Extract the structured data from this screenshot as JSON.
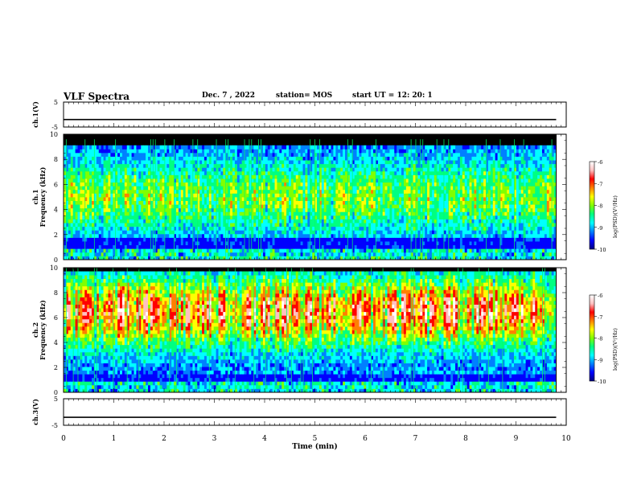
{
  "header": {
    "title": "VLF Spectra",
    "date": "Dec. 7 , 2022",
    "station": "station= MOS",
    "start": "start  UT =   12: 20: 1"
  },
  "colors": {
    "colormap": [
      "#000080",
      "#0000ff",
      "#0080ff",
      "#00ffff",
      "#00ff80",
      "#80ff00",
      "#ffff00",
      "#ff8000",
      "#ff0000",
      "#ffc0c0",
      "#ffffff"
    ],
    "bursts": "#00ff66",
    "background": "#000000"
  },
  "chart_data": [
    {
      "type": "line",
      "name": "voltage-ch1",
      "ylabel": "ch.1(V)",
      "yticks": [
        "5",
        "-5"
      ],
      "ylim": [
        -5,
        5
      ],
      "xlim": [
        0,
        10
      ],
      "baseline_v": -2,
      "grid": false
    },
    {
      "type": "heatmap",
      "name": "spectrogram-ch1",
      "ylabel": "ch.1\nFrequency (kHz)",
      "yticks": [
        "0",
        "2",
        "4",
        "6",
        "8",
        "10"
      ],
      "ylim": [
        0,
        10
      ],
      "xlim": [
        0,
        9.8
      ],
      "colorbar": {
        "label": "log(PSD)(V²/Hz)",
        "ticks": [
          "-6",
          "-7",
          "-8",
          "-9",
          "-10"
        ],
        "range": [
          -10,
          -6
        ]
      },
      "band_center_khz": 5,
      "band_strength": 0.45,
      "quiet_band_khz": [
        0.8,
        1.7
      ],
      "top_dark_khz": 9.2
    },
    {
      "type": "heatmap",
      "name": "spectrogram-ch2",
      "ylabel": "ch.2\nFrequency (kHz)",
      "yticks": [
        "0",
        "2",
        "4",
        "6",
        "8",
        "10"
      ],
      "ylim": [
        0,
        10
      ],
      "xlim": [
        0,
        9.8
      ],
      "colorbar": {
        "label": "log(PSD)(V²/Hz)",
        "ticks": [
          "-6",
          "-7",
          "-8",
          "-9",
          "-10"
        ],
        "range": [
          -10,
          -6
        ]
      },
      "band_center_khz": 6.5,
      "band_strength": 0.8,
      "quiet_band_khz": [
        1.0,
        1.6
      ],
      "top_dark_khz": 9.6
    },
    {
      "type": "line",
      "name": "voltage-ch3",
      "ylabel": "ch.3(V)",
      "yticks": [
        "5",
        "-5"
      ],
      "ylim": [
        -5,
        5
      ],
      "xlim": [
        0,
        10
      ],
      "baseline_v": -2,
      "grid": false
    }
  ],
  "xaxis": {
    "label": "Time  (min)",
    "ticks": [
      "0",
      "1",
      "2",
      "3",
      "4",
      "5",
      "6",
      "7",
      "8",
      "9",
      "10"
    ],
    "range": [
      0,
      10
    ]
  }
}
